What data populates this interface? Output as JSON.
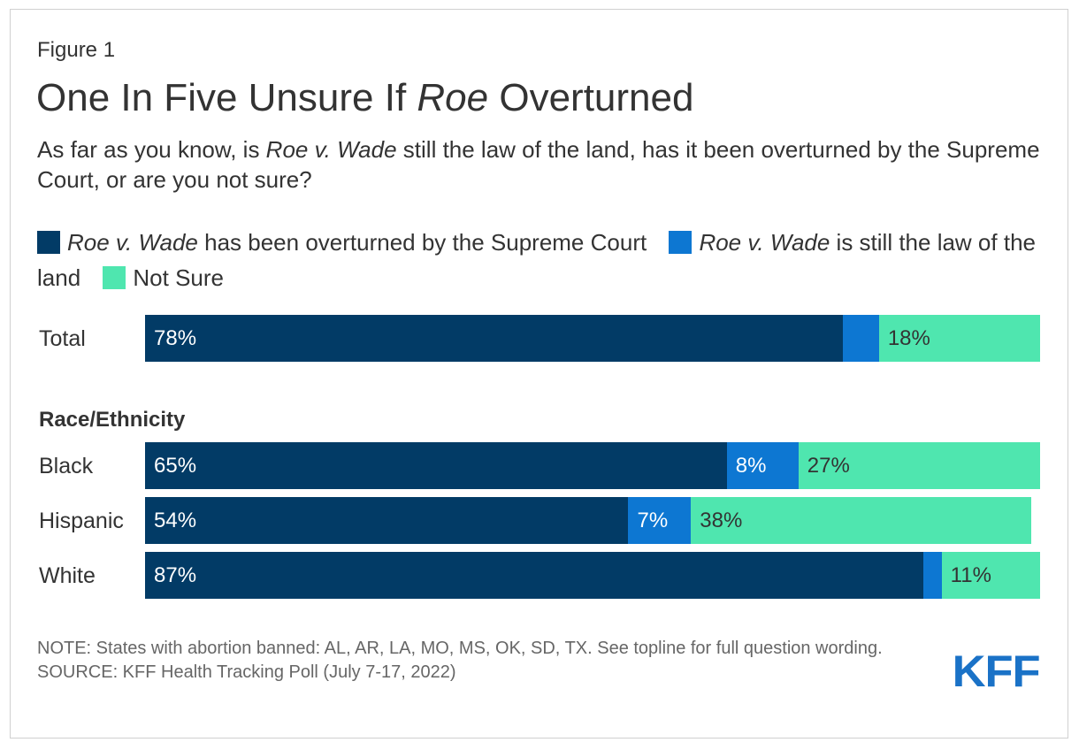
{
  "figure_label": "Figure 1",
  "title": {
    "pre": "One In Five Unsure If ",
    "italic": "Roe",
    "post": " Overturned"
  },
  "subtitle": {
    "pre": "As far as you know, is ",
    "italic": "Roe v. Wade",
    "post": " still the law of the land, has it been overturned by the Supreme Court, or are you not sure?"
  },
  "legend": [
    {
      "italic": "Roe v. Wade",
      "text": " has been overturned by the Supreme Court",
      "color": "#023b66"
    },
    {
      "italic": "Roe v. Wade",
      "text": " is still the law of the land",
      "color": "#0d77d2"
    },
    {
      "italic": "",
      "text": "Not Sure",
      "color": "#4fe6af"
    }
  ],
  "group_heading": "Race/Ethnicity",
  "notes": {
    "note": "NOTE: States with abortion banned: AL, AR, LA, MO, MS, OK, SD, TX. See topline for full question wording.",
    "source": "SOURCE: KFF Health Tracking Poll (July 7-17, 2022)"
  },
  "logo": "KFF",
  "chart_data": {
    "type": "bar",
    "orientation": "horizontal",
    "stacked": true,
    "title": "One In Five Unsure If Roe Overturned",
    "categories": [
      "Total",
      "Black",
      "Hispanic",
      "White"
    ],
    "groups": [
      {
        "heading": "",
        "categories": [
          "Total"
        ]
      },
      {
        "heading": "Race/Ethnicity",
        "categories": [
          "Black",
          "Hispanic",
          "White"
        ]
      }
    ],
    "series": [
      {
        "name": "Roe v. Wade has been overturned by the Supreme Court",
        "color": "#023b66",
        "values": [
          78,
          65,
          54,
          87
        ],
        "labels": [
          "78%",
          "65%",
          "54%",
          "87%"
        ],
        "label_color": "#ffffff"
      },
      {
        "name": "Roe v. Wade is still the law of the land",
        "color": "#0d77d2",
        "values": [
          4,
          8,
          7,
          2
        ],
        "labels": [
          "",
          "8%",
          "7%",
          ""
        ],
        "label_color": "#ffffff"
      },
      {
        "name": "Not Sure",
        "color": "#4fe6af",
        "values": [
          18,
          27,
          38,
          11
        ],
        "labels": [
          "18%",
          "27%",
          "38%",
          "11%"
        ],
        "label_color": "#333333"
      }
    ],
    "xlim": [
      0,
      100
    ],
    "xlabel": "",
    "ylabel": "",
    "grid": false,
    "legend": "top"
  }
}
